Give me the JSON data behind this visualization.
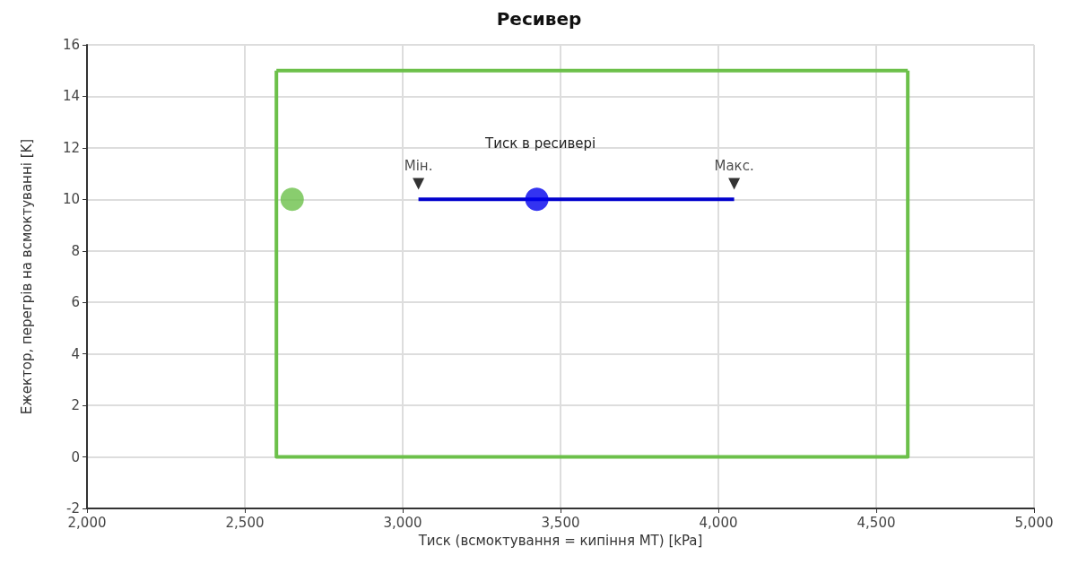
{
  "chart_data": {
    "type": "line",
    "title": "Ресивер",
    "xlabel": "Тиск (всмоктування = кипіння МТ) [kPa]",
    "ylabel": "Ежектор, перегрів на всмоктуванні [K]",
    "xlim": [
      2000,
      5000
    ],
    "xticks": [
      {
        "value": 2000,
        "label": "2,000"
      },
      {
        "value": 2500,
        "label": "2,500"
      },
      {
        "value": 3000,
        "label": "3,000"
      },
      {
        "value": 3500,
        "label": "3,500"
      },
      {
        "value": 4000,
        "label": "4,000"
      },
      {
        "value": 4500,
        "label": "4,500"
      },
      {
        "value": 5000,
        "label": "5,000"
      }
    ],
    "ylim": [
      -2,
      16
    ],
    "yticks": [
      -2,
      0,
      2,
      4,
      6,
      8,
      10,
      12,
      14,
      16
    ],
    "grid": true,
    "series": [
      {
        "marker": "none",
        "color": "#6cc04a",
        "x": [
          2600,
          2600,
          4600,
          4600
        ],
        "values": [
          15,
          0,
          0,
          15
        ]
      },
      {
        "marker": "none",
        "color": "#6cc04a",
        "x": [
          2600,
          4600
        ],
        "values": [
          15,
          15
        ]
      },
      {
        "name": "Тиск в ресивері",
        "marker": "none",
        "color": "#0000cc",
        "x": [
          3050,
          4050
        ],
        "values": [
          10,
          10
        ]
      },
      {
        "type": "scatter",
        "marker": "triangle",
        "color": "#000000",
        "x": [
          3050,
          4050
        ],
        "values": [
          10.6,
          10.6
        ],
        "value_labels": [
          "Мін.",
          "Макс."
        ]
      },
      {
        "type": "scatter",
        "marker": "circle",
        "color": "#0000ee",
        "x": [
          3425
        ],
        "values": [
          10
        ]
      },
      {
        "type": "scatter",
        "marker": "circle",
        "color": "#6cc04a",
        "x": [
          2650
        ],
        "values": [
          10
        ]
      }
    ]
  }
}
